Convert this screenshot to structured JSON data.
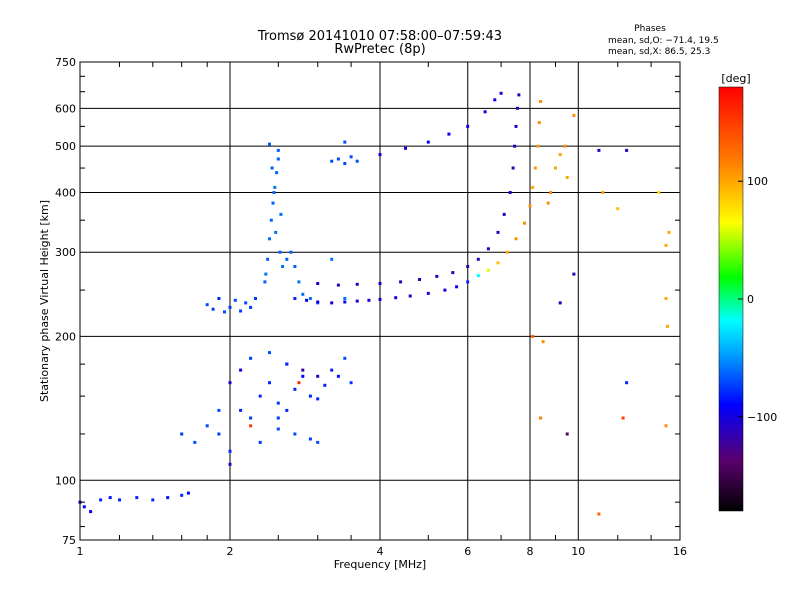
{
  "chart_data": {
    "type": "scatter",
    "title": "Tromsø 20141010 07:58:00–07:59:43",
    "subtitle": "RwPretec (8p)",
    "xlabel": "Frequency [MHz]",
    "ylabel": "Stationary phase Virtual Height [km]",
    "xscale": "log",
    "yscale": "log",
    "xlim": [
      1,
      16
    ],
    "ylim": [
      75,
      750
    ],
    "x_ticks": [
      1,
      2,
      4,
      6,
      8,
      10,
      16
    ],
    "x_tick_labels": [
      "1",
      "2",
      "4",
      "6",
      "8",
      "10",
      "16"
    ],
    "y_ticks": [
      75,
      100,
      200,
      300,
      400,
      500,
      600,
      750
    ],
    "y_tick_labels": [
      "75",
      "100",
      "200",
      "300",
      "400",
      "500",
      "600",
      "750"
    ],
    "grid": true,
    "phase_stats": {
      "title": "Phases",
      "line_o": "mean, sd,O: −71.4, 19.5",
      "line_x": "mean, sd,X:  86.5, 25.3"
    },
    "colorbar": {
      "label": "[deg]",
      "range": [
        -180,
        180
      ],
      "ticks": [
        100,
        0,
        -100
      ],
      "tick_labels": [
        "100",
        "0",
        "−100"
      ]
    },
    "series": [
      {
        "points": [
          [
            1.0,
            90,
            -90
          ],
          [
            1.02,
            88,
            -90
          ],
          [
            1.05,
            86,
            -95
          ],
          [
            1.1,
            91,
            -80
          ],
          [
            1.15,
            92,
            -85
          ],
          [
            1.2,
            91,
            -80
          ],
          [
            1.3,
            92,
            -80
          ],
          [
            1.4,
            91,
            -80
          ],
          [
            1.5,
            92,
            -85
          ],
          [
            1.6,
            93,
            -80
          ],
          [
            1.65,
            94,
            -90
          ],
          [
            1.8,
            233,
            -70
          ],
          [
            1.85,
            228,
            -75
          ],
          [
            1.9,
            240,
            -80
          ],
          [
            1.95,
            225,
            -70
          ],
          [
            2.0,
            230,
            -75
          ],
          [
            2.05,
            238,
            -70
          ],
          [
            2.1,
            226,
            -75
          ],
          [
            2.15,
            235,
            -70
          ],
          [
            2.2,
            230,
            -75
          ],
          [
            2.25,
            240,
            -75
          ],
          [
            2.35,
            260,
            -65
          ],
          [
            2.38,
            290,
            -65
          ],
          [
            2.4,
            320,
            -60
          ],
          [
            2.42,
            350,
            -65
          ],
          [
            2.44,
            380,
            -65
          ],
          [
            2.46,
            410,
            -60
          ],
          [
            2.48,
            440,
            -65
          ],
          [
            2.5,
            470,
            -65
          ],
          [
            2.5,
            490,
            -65
          ],
          [
            2.52,
            300,
            -65
          ],
          [
            2.55,
            280,
            -60
          ],
          [
            2.45,
            400,
            -60
          ],
          [
            2.47,
            330,
            -60
          ],
          [
            2.36,
            270,
            -60
          ],
          [
            2.53,
            360,
            -60
          ],
          [
            2.43,
            450,
            -65
          ],
          [
            2.6,
            290,
            -65
          ],
          [
            2.65,
            300,
            -65
          ],
          [
            2.7,
            280,
            -65
          ],
          [
            2.75,
            260,
            -60
          ],
          [
            2.8,
            245,
            -60
          ],
          [
            2.9,
            240,
            -60
          ],
          [
            3.0,
            235,
            -60
          ],
          [
            3.2,
            290,
            -60
          ],
          [
            3.4,
            240,
            -60
          ],
          [
            3.2,
            465,
            -70
          ],
          [
            3.3,
            470,
            -70
          ],
          [
            3.4,
            460,
            -70
          ],
          [
            3.5,
            475,
            -70
          ],
          [
            3.6,
            465,
            -70
          ],
          [
            3.4,
            510,
            -70
          ],
          [
            2.4,
            505,
            -65
          ],
          [
            2.7,
            240,
            -80
          ],
          [
            2.85,
            238,
            -90
          ],
          [
            3.0,
            236,
            -95
          ],
          [
            3.2,
            235,
            -100
          ],
          [
            3.4,
            236,
            -100
          ],
          [
            3.6,
            237,
            -105
          ],
          [
            3.8,
            238,
            -105
          ],
          [
            4.0,
            239,
            -105
          ],
          [
            4.3,
            241,
            -105
          ],
          [
            4.6,
            243,
            -105
          ],
          [
            5.0,
            246,
            -105
          ],
          [
            5.4,
            250,
            -100
          ],
          [
            5.7,
            254,
            -95
          ],
          [
            6.0,
            260,
            -80
          ],
          [
            6.3,
            268,
            -20
          ],
          [
            6.6,
            275,
            60
          ],
          [
            6.9,
            285,
            90
          ],
          [
            7.2,
            300,
            100
          ],
          [
            7.5,
            320,
            110
          ],
          [
            7.8,
            345,
            110
          ],
          [
            8.0,
            375,
            110
          ],
          [
            8.1,
            410,
            100
          ],
          [
            8.2,
            450,
            110
          ],
          [
            8.3,
            500,
            105
          ],
          [
            8.35,
            560,
            110
          ],
          [
            8.4,
            620,
            110
          ],
          [
            3.0,
            258,
            -105
          ],
          [
            3.3,
            256,
            -110
          ],
          [
            3.6,
            257,
            -110
          ],
          [
            4.0,
            258,
            -110
          ],
          [
            4.4,
            260,
            -110
          ],
          [
            4.8,
            263,
            -110
          ],
          [
            5.2,
            267,
            -110
          ],
          [
            5.6,
            272,
            -110
          ],
          [
            6.0,
            280,
            -110
          ],
          [
            6.3,
            290,
            -110
          ],
          [
            6.6,
            305,
            -110
          ],
          [
            6.9,
            330,
            -110
          ],
          [
            7.1,
            360,
            -110
          ],
          [
            7.3,
            400,
            -105
          ],
          [
            7.4,
            450,
            -110
          ],
          [
            7.45,
            500,
            -110
          ],
          [
            7.5,
            550,
            -110
          ],
          [
            7.55,
            600,
            -110
          ],
          [
            7.6,
            640,
            -110
          ],
          [
            4.0,
            480,
            -100
          ],
          [
            4.5,
            495,
            -100
          ],
          [
            5.0,
            510,
            -95
          ],
          [
            5.5,
            530,
            -95
          ],
          [
            6.0,
            550,
            -100
          ],
          [
            6.5,
            590,
            -100
          ],
          [
            6.8,
            625,
            -100
          ],
          [
            7.0,
            645,
            -105
          ],
          [
            8.8,
            400,
            110
          ],
          [
            9.0,
            450,
            100
          ],
          [
            9.2,
            480,
            100
          ],
          [
            8.7,
            380,
            110
          ],
          [
            9.5,
            430,
            100
          ],
          [
            9.8,
            580,
            110
          ],
          [
            9.4,
            500,
            110
          ],
          [
            1.6,
            125,
            -75
          ],
          [
            1.7,
            120,
            -70
          ],
          [
            1.8,
            130,
            -70
          ],
          [
            1.9,
            125,
            -75
          ],
          [
            2.0,
            115,
            -80
          ],
          [
            2.1,
            140,
            -80
          ],
          [
            2.2,
            135,
            -75
          ],
          [
            2.3,
            150,
            -80
          ],
          [
            2.4,
            160,
            -80
          ],
          [
            2.5,
            145,
            -75
          ],
          [
            2.6,
            140,
            -80
          ],
          [
            2.7,
            155,
            -80
          ],
          [
            2.8,
            165,
            -90
          ],
          [
            2.9,
            150,
            -80
          ],
          [
            3.0,
            148,
            -80
          ],
          [
            3.1,
            158,
            -80
          ],
          [
            3.2,
            170,
            -80
          ],
          [
            3.3,
            165,
            -85
          ],
          [
            3.4,
            180,
            -70
          ],
          [
            3.5,
            160,
            -75
          ],
          [
            2.0,
            160,
            -105
          ],
          [
            2.1,
            170,
            -100
          ],
          [
            2.2,
            180,
            -75
          ],
          [
            2.4,
            185,
            -70
          ],
          [
            2.6,
            175,
            -70
          ],
          [
            2.8,
            170,
            -120
          ],
          [
            3.0,
            165,
            -110
          ],
          [
            2.5,
            128,
            -70
          ],
          [
            2.7,
            125,
            -70
          ],
          [
            2.9,
            122,
            -75
          ],
          [
            2.2,
            130,
            150
          ],
          [
            2.75,
            160,
            160
          ],
          [
            3.0,
            120,
            -70
          ],
          [
            1.9,
            140,
            -70
          ],
          [
            2.0,
            108,
            -110
          ],
          [
            2.3,
            120,
            -75
          ],
          [
            2.5,
            135,
            -75
          ],
          [
            2.6,
            175,
            -80
          ],
          [
            8.1,
            200,
            130
          ],
          [
            8.5,
            195,
            110
          ],
          [
            9.2,
            235,
            -110
          ],
          [
            9.8,
            270,
            -110
          ],
          [
            9.5,
            125,
            -140
          ],
          [
            8.4,
            135,
            115
          ],
          [
            12.5,
            490,
            -110
          ],
          [
            11.0,
            490,
            -110
          ],
          [
            12.0,
            370,
            90
          ],
          [
            14.5,
            400,
            80
          ],
          [
            15.0,
            310,
            100
          ],
          [
            15.2,
            330,
            100
          ],
          [
            12.5,
            160,
            -80
          ],
          [
            15.0,
            130,
            110
          ],
          [
            15.0,
            240,
            100
          ],
          [
            11.0,
            85,
            130
          ],
          [
            12.3,
            135,
            150
          ],
          [
            15.1,
            210,
            100
          ],
          [
            11.2,
            400,
            100
          ]
        ]
      }
    ]
  }
}
